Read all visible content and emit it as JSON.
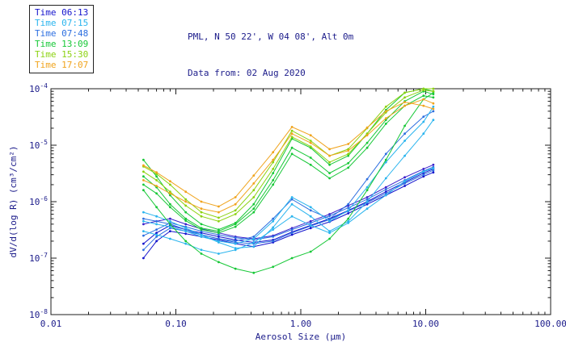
{
  "header": {
    "title_line1": "PML, N 50 22', W 04 08', Alt 0m",
    "title_line2": "Data from: 02 Aug 2020"
  },
  "legend": {
    "entries": [
      {
        "label": "Time 06:13",
        "color": "#1414cd"
      },
      {
        "label": "Time 07:15",
        "color": "#2ab4ee"
      },
      {
        "label": "Time 07:48",
        "color": "#2d6fe0"
      },
      {
        "label": "Time 13:09",
        "color": "#17c837"
      },
      {
        "label": "Time 15:30",
        "color": "#8cd211"
      },
      {
        "label": "Time 17:07",
        "color": "#f0a41e"
      }
    ]
  },
  "chart_data": {
    "type": "line",
    "title": "PML, N 50 22', W 04 08', Alt 0m",
    "subtitle": "Data from: 02 Aug 2020",
    "xlabel": "Aerosol Size (μm)",
    "ylabel": "dV/d(log R) (cm³/cm²)",
    "x_scale": "log",
    "y_scale": "log",
    "xlim": [
      0.01,
      100
    ],
    "ylim": [
      1e-08,
      0.0001
    ],
    "grid": false,
    "legend_position": "top-left",
    "axis_color": "#1c1c1c",
    "text_color": "#1b1b8a",
    "x_ticks": [
      {
        "value": 0.01,
        "label": "0.01"
      },
      {
        "value": 0.1,
        "label": "0.10"
      },
      {
        "value": 1.0,
        "label": "1.00"
      },
      {
        "value": 10.0,
        "label": "10.00"
      },
      {
        "value": 100.0,
        "label": "100.00"
      }
    ],
    "y_ticks": [
      {
        "exp": -8
      },
      {
        "exp": -7
      },
      {
        "exp": -6
      },
      {
        "exp": -5
      },
      {
        "exp": -4
      }
    ],
    "x": [
      0.055,
      0.07,
      0.09,
      0.12,
      0.16,
      0.22,
      0.3,
      0.42,
      0.6,
      0.85,
      1.2,
      1.7,
      2.4,
      3.4,
      4.8,
      6.8,
      9.6,
      11.5
    ],
    "series": [
      {
        "name": "Time 06:13 run a",
        "color": "#1414cd",
        "y": [
          1.8e-07,
          2.8e-07,
          3.8e-07,
          3.2e-07,
          2.8e-07,
          2.4e-07,
          2.1e-07,
          1.9e-07,
          2.1e-07,
          2.9e-07,
          3.8e-07,
          5e-07,
          7e-07,
          1e-06,
          1.5e-06,
          2.2e-06,
          3.2e-06,
          3.8e-06
        ]
      },
      {
        "name": "Time 06:13 run b",
        "color": "#1414cd",
        "y": [
          1e-07,
          2e-07,
          3e-07,
          2.7e-07,
          2.4e-07,
          2.1e-07,
          1.8e-07,
          1.6e-07,
          1.9e-07,
          2.6e-07,
          3.4e-07,
          4.4e-07,
          6.2e-07,
          9e-07,
          1.3e-06,
          1.9e-06,
          2.8e-06,
          3.3e-06
        ]
      },
      {
        "name": "Time 06:13 run c",
        "color": "#3a1ecb",
        "y": [
          4e-07,
          4.5e-07,
          5e-07,
          4e-07,
          3.3e-07,
          2.8e-07,
          2.4e-07,
          2.2e-07,
          2.5e-07,
          3.4e-07,
          4.5e-07,
          6e-07,
          8.5e-07,
          1.2e-06,
          1.8e-06,
          2.7e-06,
          3.8e-06,
          4.5e-06
        ]
      },
      {
        "name": "Time 07:48 run a",
        "color": "#2d6fe0",
        "y": [
          2.5e-07,
          3.2e-07,
          4.2e-07,
          3.6e-07,
          3e-07,
          2.6e-07,
          2.3e-07,
          2.1e-07,
          2.4e-07,
          3.2e-07,
          4.2e-07,
          5.6e-07,
          7.8e-07,
          1.1e-06,
          1.65e-06,
          2.4e-06,
          3.5e-06,
          4.1e-06
        ]
      },
      {
        "name": "Time 07:48 run b",
        "color": "#2d6fe0",
        "y": [
          1.4e-07,
          2.4e-07,
          3.4e-07,
          3e-07,
          2.6e-07,
          2.2e-07,
          1.9e-07,
          1.8e-07,
          2e-07,
          2.8e-07,
          3.7e-07,
          4.8e-07,
          6.8e-07,
          9.6e-07,
          1.4e-06,
          2.1e-06,
          3e-06,
          3.6e-06
        ]
      },
      {
        "name": "Time 07:48 run c",
        "color": "#2d6fe0",
        "y": [
          5e-07,
          4.5e-07,
          4e-07,
          3.2e-07,
          2.6e-07,
          2.2e-07,
          2e-07,
          2.4e-07,
          5e-07,
          1.1e-06,
          7e-07,
          5e-07,
          9e-07,
          2.5e-06,
          7e-06,
          1.6e-05,
          3.2e-05,
          4e-05
        ]
      },
      {
        "name": "Time 07:15 run a",
        "color": "#2ab4ee",
        "y": [
          6.5e-07,
          5.5e-07,
          4.5e-07,
          3.4e-07,
          2.6e-07,
          1.9e-07,
          1.5e-07,
          1.6e-07,
          3.5e-07,
          9e-07,
          5.5e-07,
          3e-07,
          4.5e-07,
          1e-06,
          2.6e-06,
          6.5e-06,
          1.6e-05,
          2.8e-05
        ]
      },
      {
        "name": "Time 07:15 run b",
        "color": "#2ab4ee",
        "y": [
          3e-07,
          2.6e-07,
          2.2e-07,
          1.8e-07,
          1.4e-07,
          1.2e-07,
          1.4e-07,
          1.9e-07,
          3.2e-07,
          5.5e-07,
          3.8e-07,
          2.8e-07,
          4.2e-07,
          7.5e-07,
          1.3e-06,
          2.3e-06,
          3.4e-06,
          3.9e-06
        ]
      },
      {
        "name": "Time 07:15 run c",
        "color": "#2ab4ee",
        "y": [
          4.5e-07,
          4e-07,
          3.6e-07,
          3e-07,
          2.4e-07,
          2e-07,
          1.8e-07,
          2.2e-07,
          4.5e-07,
          1.2e-06,
          8e-07,
          4.5e-07,
          7e-07,
          1.8e-06,
          5e-06,
          1.2e-05,
          2.6e-05,
          4.8e-05
        ]
      },
      {
        "name": "Time 13:09 run a",
        "color": "#17c837",
        "y": [
          5.5e-06,
          2.8e-06,
          1.3e-06,
          6.5e-07,
          4e-07,
          3.2e-07,
          4.2e-07,
          9e-07,
          3.2e-06,
          1.3e-05,
          9e-06,
          4.5e-06,
          6.5e-06,
          1.6e-05,
          4.2e-05,
          8.5e-05,
          0.0001,
          9e-05
        ]
      },
      {
        "name": "Time 13:09 run b",
        "color": "#17c837",
        "y": [
          1.6e-06,
          8e-07,
          4e-07,
          2e-07,
          1.2e-07,
          8.5e-08,
          6.5e-08,
          5.5e-08,
          7e-08,
          1e-07,
          1.3e-07,
          2.2e-07,
          5e-07,
          1.6e-06,
          5.5e-06,
          2.2e-05,
          6.5e-05,
          8.5e-05
        ]
      },
      {
        "name": "Time 13:09 run c",
        "color": "#17c837",
        "y": [
          2.8e-06,
          1.8e-06,
          9e-07,
          5e-07,
          3.4e-07,
          3e-07,
          4e-07,
          7.5e-07,
          2.4e-06,
          9e-06,
          6e-06,
          3.2e-06,
          4.8e-06,
          1.1e-05,
          2.8e-05,
          6e-05,
          9e-05,
          8e-05
        ]
      },
      {
        "name": "Time 13:09 run d",
        "color": "#17c837",
        "y": [
          2e-06,
          1.4e-06,
          8e-07,
          4.6e-07,
          3.2e-07,
          2.8e-07,
          3.6e-07,
          6.5e-07,
          2e-06,
          7e-06,
          4.5e-06,
          2.6e-06,
          4e-06,
          9e-06,
          2.4e-05,
          5e-05,
          7.5e-05,
          7e-05
        ]
      },
      {
        "name": "Time 15:30 run a",
        "color": "#8cd211",
        "y": [
          4.2e-06,
          3.1e-06,
          2e-06,
          1.1e-06,
          6.5e-07,
          5.2e-07,
          7e-07,
          1.6e-06,
          5e-06,
          1.8e-05,
          1.2e-05,
          6.5e-06,
          8.5e-06,
          2e-05,
          4.8e-05,
          8.5e-05,
          0.0001,
          0.0001
        ]
      },
      {
        "name": "Time 15:30 run b",
        "color": "#8cd211",
        "y": [
          3.4e-06,
          2.4e-06,
          1.5e-06,
          8.5e-07,
          5.5e-07,
          4.5e-07,
          6e-07,
          1.2e-06,
          3.8e-06,
          1.4e-05,
          9.5e-06,
          5e-06,
          7e-06,
          1.6e-05,
          3.8e-05,
          7e-05,
          9.5e-05,
          9e-05
        ]
      },
      {
        "name": "Time 17:07 run a",
        "color": "#f0a41e",
        "y": [
          4.4e-06,
          3.3e-06,
          2.3e-06,
          1.5e-06,
          1e-06,
          8.2e-07,
          1.2e-06,
          2.9e-06,
          7.5e-06,
          2.1e-05,
          1.5e-05,
          8.5e-06,
          1.05e-05,
          2.05e-05,
          4e-05,
          5.8e-05,
          5e-05,
          4.4e-05
        ]
      },
      {
        "name": "Time 17:07 run b",
        "color": "#f0a41e",
        "y": [
          2.4e-06,
          1.9e-06,
          1.4e-06,
          1e-06,
          7.5e-07,
          6.5e-07,
          9e-07,
          2.1e-06,
          5.5e-06,
          1.6e-05,
          1.1e-05,
          6.5e-06,
          8e-06,
          1.5e-05,
          3e-05,
          5e-05,
          6.5e-05,
          5.5e-05
        ]
      }
    ]
  }
}
